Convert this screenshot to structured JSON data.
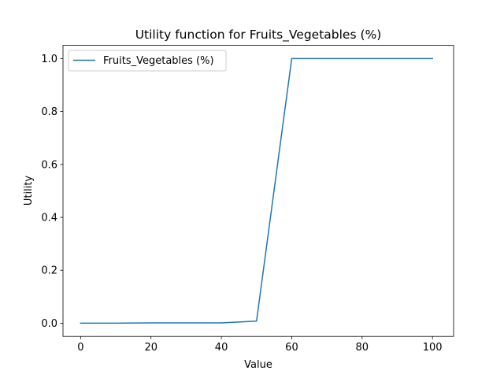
{
  "chart_data": {
    "type": "line",
    "title": "Utility function for Fruits_Vegetables (%)",
    "xlabel": "Value",
    "ylabel": "Utility",
    "xlim": [
      -5,
      106
    ],
    "ylim": [
      -0.05,
      1.05
    ],
    "xticks": [
      0,
      20,
      40,
      60,
      80,
      100
    ],
    "yticks": [
      0.0,
      0.2,
      0.4,
      0.6,
      0.8,
      1.0
    ],
    "xtick_labels": [
      "0",
      "20",
      "40",
      "60",
      "80",
      "100"
    ],
    "ytick_labels": [
      "0.0",
      "0.2",
      "0.4",
      "0.6",
      "0.8",
      "1.0"
    ],
    "grid": false,
    "legend_position": "top-left",
    "series": [
      {
        "name": "Fruits_Vegetables (%)",
        "color": "#1f77b4",
        "x": [
          0,
          10,
          20,
          30,
          40,
          50,
          60,
          70,
          80,
          90,
          100
        ],
        "y": [
          0.0,
          0.0,
          0.001,
          0.001,
          0.001,
          0.008,
          1.0,
          1.0,
          1.0,
          1.0,
          1.0
        ]
      }
    ]
  }
}
